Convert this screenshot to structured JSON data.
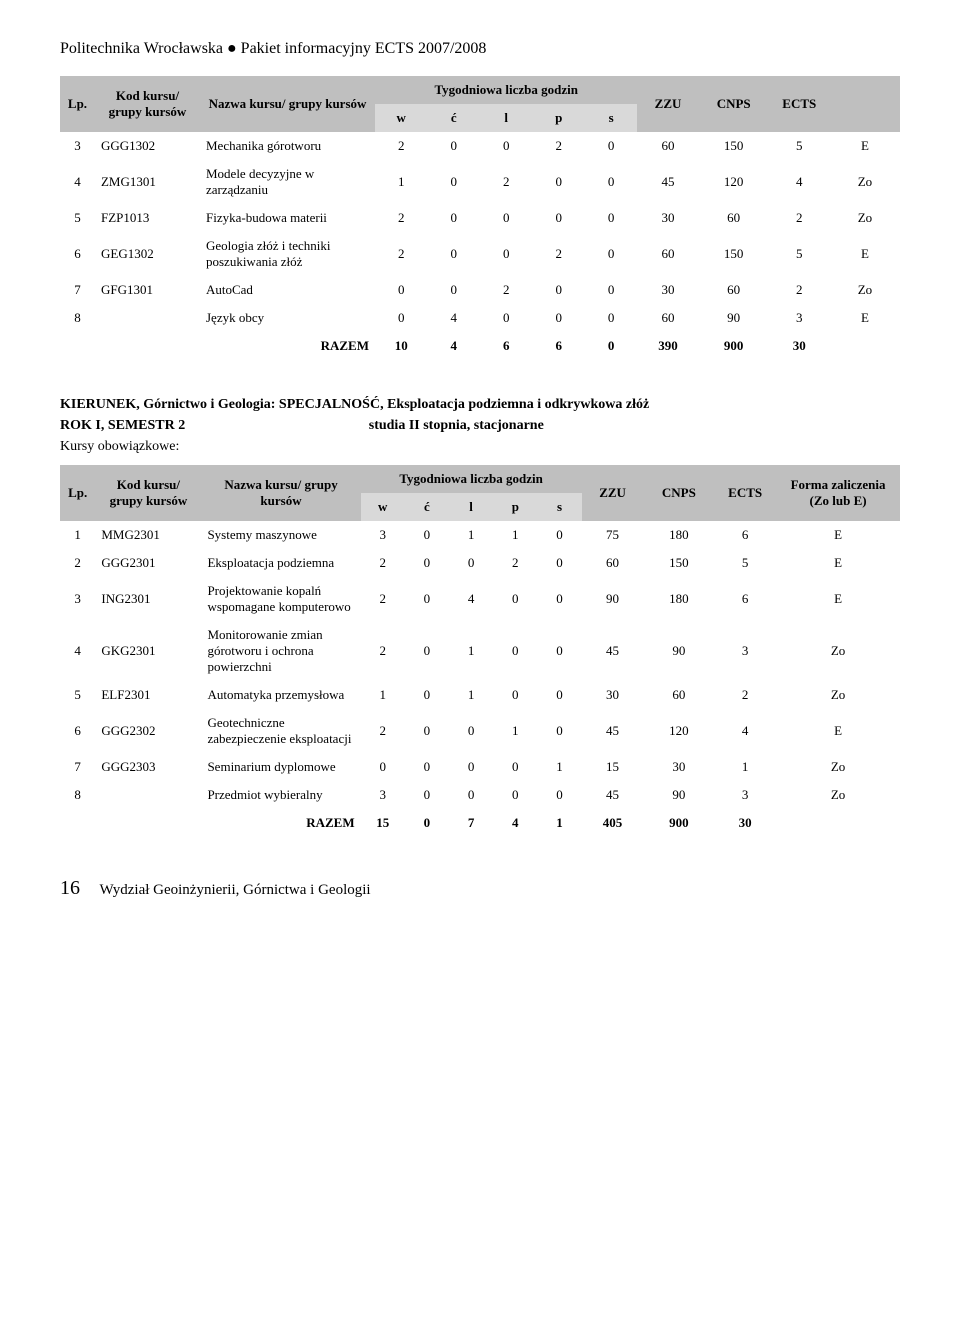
{
  "header": "Politechnika Wrocławska ● Pakiet informacyjny ECTS 2007/2008",
  "colors": {
    "header_bg": "#bfbfbf",
    "subheader_bg": "#d9d9d9",
    "text": "#000000",
    "page_bg": "#ffffff"
  },
  "table1": {
    "columns": {
      "lp": "Lp.",
      "kod": "Kod kursu/ grupy kursów",
      "nazwa": "Nazwa kursu/ grupy kursów",
      "tyg": "Tygodniowa liczba godzin",
      "sub": [
        "w",
        "ć",
        "l",
        "p",
        "s"
      ],
      "zzu": "ZZU",
      "cnps": "CNPS",
      "ects": "ECTS",
      "forma": ""
    },
    "rows": [
      {
        "lp": "3",
        "kod": "GGG1302",
        "nazwa": "Mechanika górotworu",
        "w": "2",
        "c": "0",
        "l": "0",
        "p": "2",
        "s": "0",
        "zzu": "60",
        "cnps": "150",
        "ects": "5",
        "f": "E"
      },
      {
        "lp": "4",
        "kod": "ZMG1301",
        "nazwa": "Modele decyzyjne w zarządzaniu",
        "w": "1",
        "c": "0",
        "l": "2",
        "p": "0",
        "s": "0",
        "zzu": "45",
        "cnps": "120",
        "ects": "4",
        "f": "Zo"
      },
      {
        "lp": "5",
        "kod": "FZP1013",
        "nazwa": "Fizyka-budowa materii",
        "w": "2",
        "c": "0",
        "l": "0",
        "p": "0",
        "s": "0",
        "zzu": "30",
        "cnps": "60",
        "ects": "2",
        "f": "Zo"
      },
      {
        "lp": "6",
        "kod": "GEG1302",
        "nazwa": "Geologia złóż i techniki poszukiwania złóż",
        "w": "2",
        "c": "0",
        "l": "0",
        "p": "2",
        "s": "0",
        "zzu": "60",
        "cnps": "150",
        "ects": "5",
        "f": "E"
      },
      {
        "lp": "7",
        "kod": "GFG1301",
        "nazwa": "AutoCad",
        "w": "0",
        "c": "0",
        "l": "2",
        "p": "0",
        "s": "0",
        "zzu": "30",
        "cnps": "60",
        "ects": "2",
        "f": "Zo"
      },
      {
        "lp": "8",
        "kod": "",
        "nazwa": "Język obcy",
        "w": "0",
        "c": "4",
        "l": "0",
        "p": "0",
        "s": "0",
        "zzu": "60",
        "cnps": "90",
        "ects": "3",
        "f": "E"
      }
    ],
    "totals": {
      "label": "RAZEM",
      "w": "10",
      "c": "4",
      "l": "6",
      "p": "6",
      "s": "0",
      "zzu": "390",
      "cnps": "900",
      "ects": "30",
      "f": ""
    }
  },
  "section": {
    "line1": "KIERUNEK, Górnictwo i Geologia: SPECJALNOŚĆ, Eksploatacja podziemna i odkrywkowa złóż",
    "line2_left": "ROK I, SEMESTR 2",
    "line2_right": "studia II stopnia, stacjonarne",
    "line3": "Kursy obowiązkowe:"
  },
  "table2": {
    "columns": {
      "lp": "Lp.",
      "kod": "Kod kursu/ grupy kursów",
      "nazwa": "Nazwa kursu/ grupy kursów",
      "tyg": "Tygodniowa liczba godzin",
      "sub": [
        "w",
        "ć",
        "l",
        "p",
        "s"
      ],
      "zzu": "ZZU",
      "cnps": "CNPS",
      "ects": "ECTS",
      "forma": "Forma zaliczenia (Zo lub E)"
    },
    "rows": [
      {
        "lp": "1",
        "kod": "MMG2301",
        "nazwa": "Systemy maszynowe",
        "w": "3",
        "c": "0",
        "l": "1",
        "p": "1",
        "s": "0",
        "zzu": "75",
        "cnps": "180",
        "ects": "6",
        "f": "E"
      },
      {
        "lp": "2",
        "kod": "GGG2301",
        "nazwa": "Eksploatacja podziemna",
        "w": "2",
        "c": "0",
        "l": "0",
        "p": "2",
        "s": "0",
        "zzu": "60",
        "cnps": "150",
        "ects": "5",
        "f": "E"
      },
      {
        "lp": "3",
        "kod": "ING2301",
        "nazwa": "Projektowanie kopalń wspomagane komputerowo",
        "w": "2",
        "c": "0",
        "l": "4",
        "p": "0",
        "s": "0",
        "zzu": "90",
        "cnps": "180",
        "ects": "6",
        "f": "E"
      },
      {
        "lp": "4",
        "kod": "GKG2301",
        "nazwa": "Monitorowanie zmian górotworu i ochrona powierzchni",
        "w": "2",
        "c": "0",
        "l": "1",
        "p": "0",
        "s": "0",
        "zzu": "45",
        "cnps": "90",
        "ects": "3",
        "f": "Zo"
      },
      {
        "lp": "5",
        "kod": "ELF2301",
        "nazwa": "Automatyka przemysłowa",
        "w": "1",
        "c": "0",
        "l": "1",
        "p": "0",
        "s": "0",
        "zzu": "30",
        "cnps": "60",
        "ects": "2",
        "f": "Zo"
      },
      {
        "lp": "6",
        "kod": "GGG2302",
        "nazwa": "Geotechniczne zabezpieczenie eksploatacji",
        "w": "2",
        "c": "0",
        "l": "0",
        "p": "1",
        "s": "0",
        "zzu": "45",
        "cnps": "120",
        "ects": "4",
        "f": "E"
      },
      {
        "lp": "7",
        "kod": "GGG2303",
        "nazwa": "Seminarium dyplomowe",
        "w": "0",
        "c": "0",
        "l": "0",
        "p": "0",
        "s": "1",
        "zzu": "15",
        "cnps": "30",
        "ects": "1",
        "f": "Zo"
      },
      {
        "lp": "8",
        "kod": "",
        "nazwa": "Przedmiot wybieralny",
        "w": "3",
        "c": "0",
        "l": "0",
        "p": "0",
        "s": "0",
        "zzu": "45",
        "cnps": "90",
        "ects": "3",
        "f": "Zo"
      }
    ],
    "totals": {
      "label": "RAZEM",
      "w": "15",
      "c": "0",
      "l": "7",
      "p": "4",
      "s": "1",
      "zzu": "405",
      "cnps": "900",
      "ects": "30",
      "f": ""
    }
  },
  "footer": {
    "page": "16",
    "text": "Wydział Geoinżynierii, Górnictwa i Geologii"
  }
}
